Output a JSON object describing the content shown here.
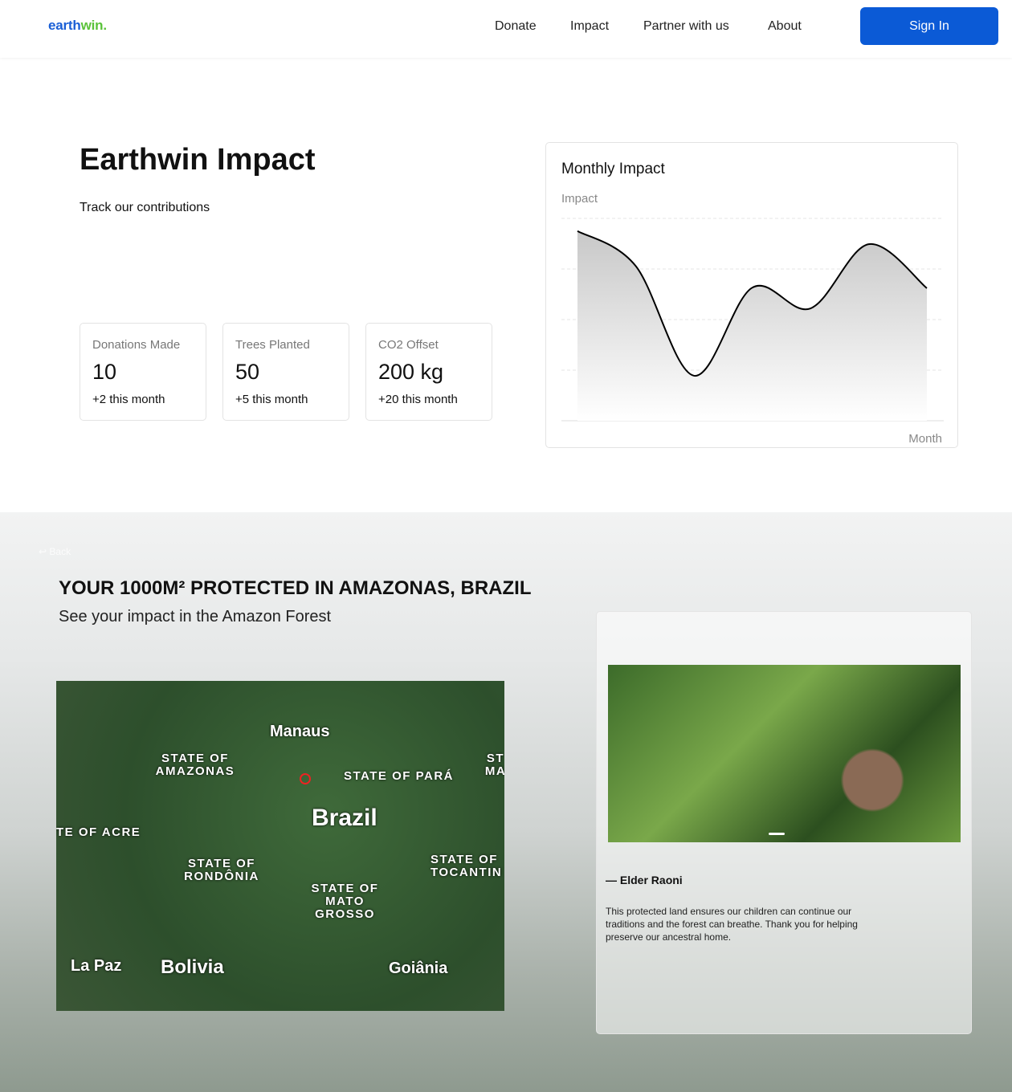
{
  "nav": {
    "logo_a": "earth",
    "logo_b": "win",
    "logo_dot": ".",
    "links": [
      "Donate",
      "Impact",
      "Partner with us",
      "About"
    ],
    "signin": "Sign In"
  },
  "hero": {
    "title": "Earthwin Impact",
    "subtitle": "Track our contributions"
  },
  "stats": [
    {
      "label": "Donations Made",
      "value": "10",
      "delta": "+2 this month"
    },
    {
      "label": "Trees Planted",
      "value": "50",
      "delta": "+5 this month"
    },
    {
      "label": "CO2 Offset",
      "value": "200 kg",
      "delta": "+20 this month"
    }
  ],
  "chart_data": {
    "type": "area",
    "title": "Monthly Impact",
    "ylabel": "Impact",
    "xlabel": "Month",
    "values": [
      3.75,
      3.06,
      0.89,
      2.63,
      2.22,
      3.49,
      2.62
    ],
    "ylim": [
      0,
      4
    ],
    "grid": true,
    "colors": {
      "line": "#000000",
      "fill": "#cccccc"
    }
  },
  "section": {
    "back": "Back",
    "title": "YOUR 1000M² PROTECTED IN AMAZONAS, BRAZIL",
    "subtitle": "See your impact in the Amazon Forest"
  },
  "map": {
    "labels": [
      "Manaus",
      "STATE OF AMAZONAS",
      "STATE OF PARÁ",
      "ST MA",
      "Brazil",
      "TE OF ACRE",
      "STATE OF RONDÔNIA",
      "STATE OF MATO GROSSO",
      "STATE OF TOCANTIN",
      "La Paz",
      "Bolivia",
      "Goiânia"
    ]
  },
  "quote": {
    "author": "— Elder Raoni",
    "text": "This protected land ensures our children can continue our traditions and the forest can breathe. Thank you for helping preserve our ancestral home."
  }
}
